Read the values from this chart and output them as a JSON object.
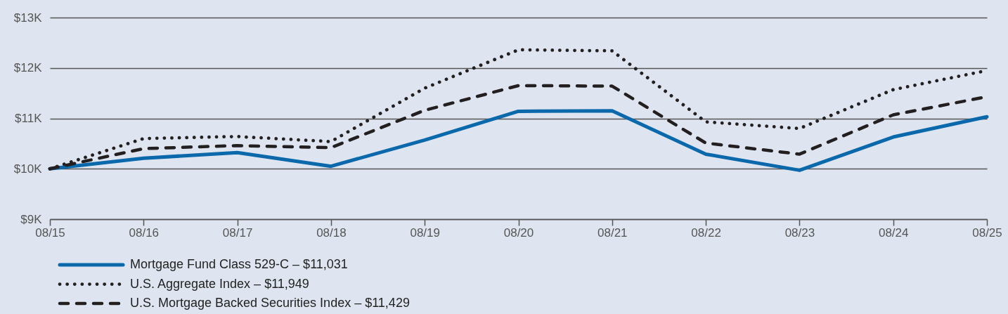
{
  "chart_data": {
    "type": "line",
    "categories": [
      "08/15",
      "08/16",
      "08/17",
      "08/18",
      "08/19",
      "08/20",
      "08/21",
      "08/22",
      "08/23",
      "08/24",
      "08/25"
    ],
    "series": [
      {
        "name": "Mortgage Fund Class 529-C – $11,031",
        "color": "#0a68ab",
        "line_style": "solid",
        "values": [
          10000,
          10210,
          10320,
          10050,
          10570,
          11140,
          11150,
          10290,
          9970,
          10630,
          11031
        ]
      },
      {
        "name": "U.S. Aggregate Index – $11,949",
        "color": "#231f20",
        "line_style": "dotted",
        "values": [
          10000,
          10600,
          10640,
          10540,
          11600,
          12360,
          12340,
          10930,
          10800,
          11570,
          11949
        ]
      },
      {
        "name": "U.S. Mortgage Backed Securities Index – $11,429",
        "color": "#231f20",
        "line_style": "dashed",
        "values": [
          10000,
          10400,
          10460,
          10420,
          11160,
          11650,
          11640,
          10510,
          10290,
          11070,
          11429
        ]
      }
    ],
    "ylim": [
      9000,
      13000
    ],
    "yticks": [
      {
        "value": 9000,
        "label": "$9K"
      },
      {
        "value": 10000,
        "label": "$10K"
      },
      {
        "value": 11000,
        "label": "$11K"
      },
      {
        "value": 12000,
        "label": "$12K"
      },
      {
        "value": 13000,
        "label": "$13K"
      }
    ],
    "grid": "y",
    "legend": "bottom left"
  }
}
